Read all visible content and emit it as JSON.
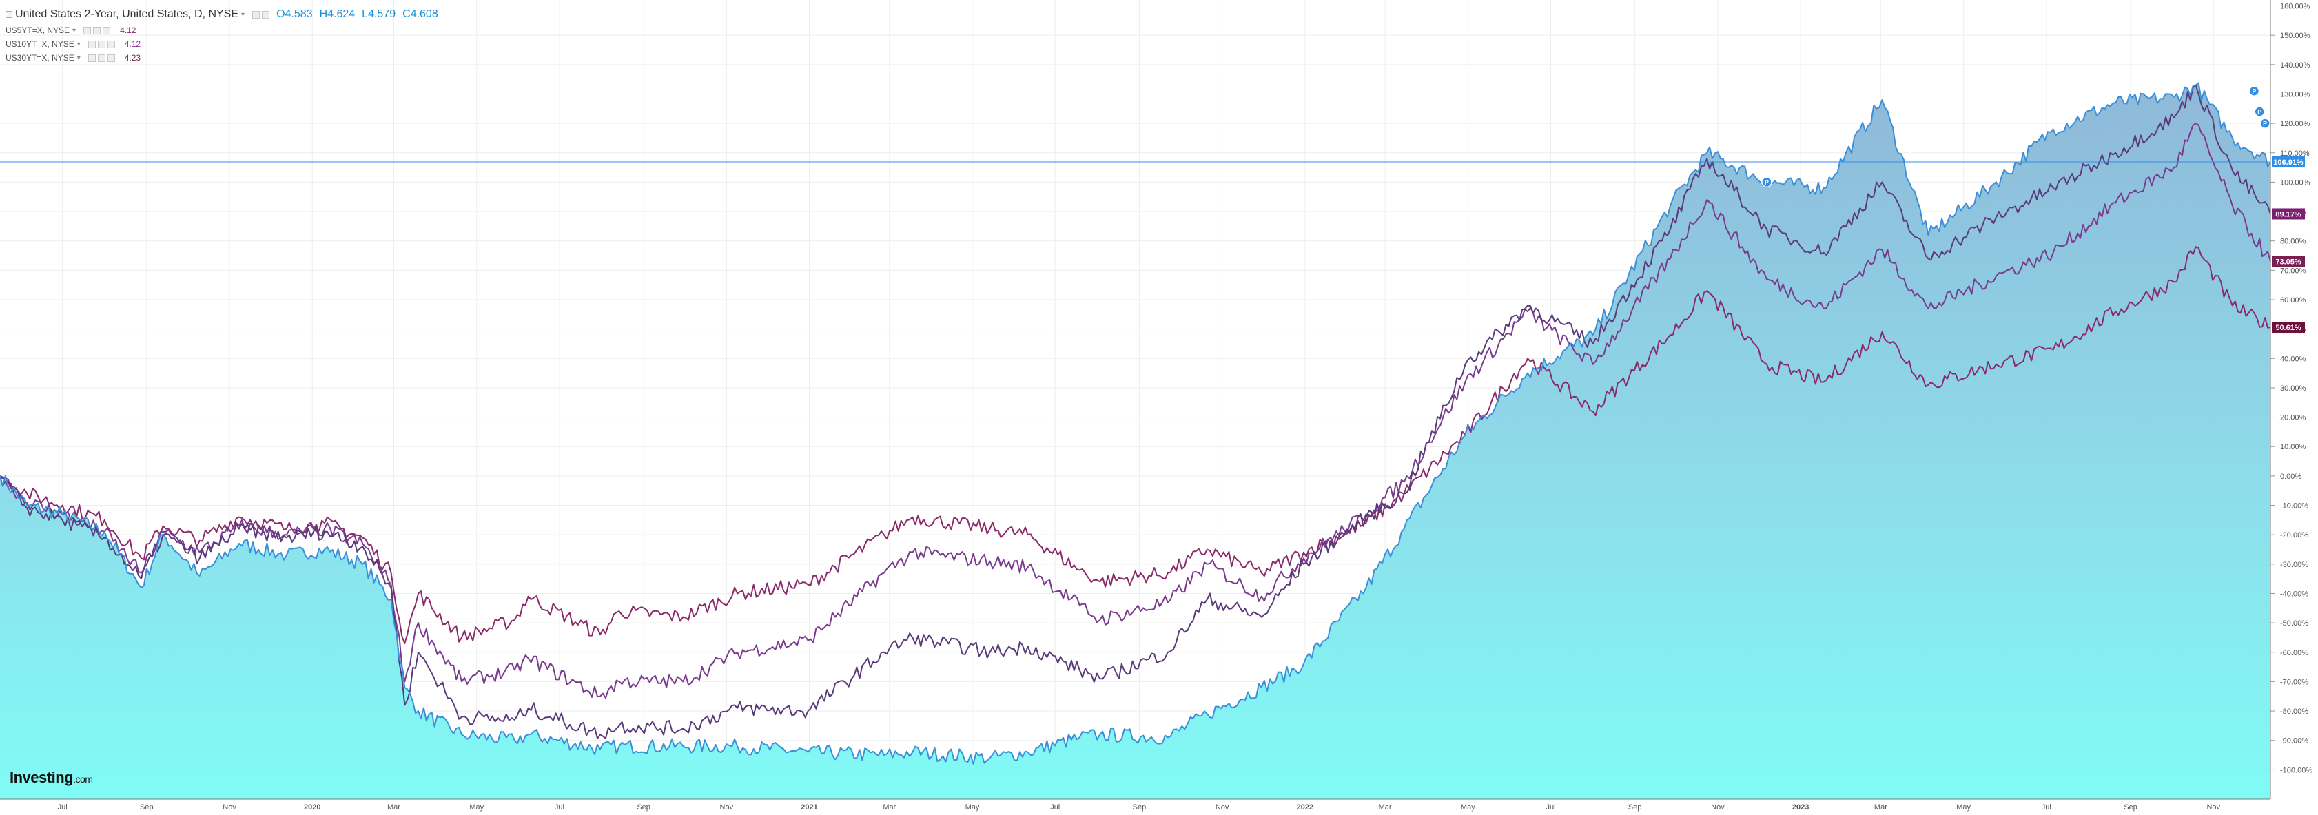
{
  "legend": {
    "main_title": "United States 2-Year, United States, D, NYSE",
    "open_key": "O",
    "open": "4.583",
    "high_key": "H",
    "high": "4.624",
    "low_key": "L",
    "low": "4.579",
    "close_key": "C",
    "close": "4.608",
    "comparisons": [
      {
        "symbol": "US5YT=X, NYSE",
        "last": "4.12"
      },
      {
        "symbol": "US10YT=X, NYSE",
        "last": "4.12"
      },
      {
        "symbol": "US30YT=X, NYSE",
        "last": "4.23"
      }
    ]
  },
  "logo": {
    "main": "Investing",
    "suffix": ".com"
  },
  "colors": {
    "us2y_line": "#3a8fd8",
    "us2y_fill_top": "#8fb8d8",
    "us2y_fill_bottom": "#80fbf5",
    "us5y": "#5a3a7a",
    "us10y": "#7a3a8e",
    "us30y": "#8b2a6b",
    "grid": "#eeeeee",
    "price_line": "#2f8fe6"
  },
  "chart_data": {
    "type": "area",
    "x_unit": "date",
    "y_unit": "percent change",
    "ylim": [
      -110,
      162
    ],
    "y_ticks": [
      "160.00%",
      "150.00%",
      "140.00%",
      "130.00%",
      "120.00%",
      "110.00%",
      "100.00%",
      "90.00%",
      "80.00%",
      "70.00%",
      "60.00%",
      "50.00%",
      "40.00%",
      "30.00%",
      "20.00%",
      "10.00%",
      "0.00%",
      "-10.00%",
      "-20.00%",
      "-30.00%",
      "-40.00%",
      "-50.00%",
      "-60.00%",
      "-70.00%",
      "-80.00%",
      "-90.00%",
      "-100.00%"
    ],
    "y_tick_values": [
      160,
      150,
      140,
      130,
      120,
      110,
      100,
      90,
      80,
      70,
      60,
      50,
      40,
      30,
      20,
      10,
      0,
      -10,
      -20,
      -30,
      -40,
      -50,
      -60,
      -70,
      -80,
      -90,
      -100
    ],
    "x_ticks": [
      {
        "label": "Jul",
        "date": "2019-07-01"
      },
      {
        "label": "Sep",
        "date": "2019-09-01"
      },
      {
        "label": "Nov",
        "date": "2019-11-01"
      },
      {
        "label": "2020",
        "date": "2020-01-01"
      },
      {
        "label": "Mar",
        "date": "2020-03-01"
      },
      {
        "label": "May",
        "date": "2020-05-01"
      },
      {
        "label": "Jul",
        "date": "2020-07-01"
      },
      {
        "label": "Sep",
        "date": "2020-09-01"
      },
      {
        "label": "Nov",
        "date": "2020-11-01"
      },
      {
        "label": "2021",
        "date": "2021-01-01"
      },
      {
        "label": "Mar",
        "date": "2021-03-01"
      },
      {
        "label": "May",
        "date": "2021-05-01"
      },
      {
        "label": "Jul",
        "date": "2021-07-01"
      },
      {
        "label": "Sep",
        "date": "2021-09-01"
      },
      {
        "label": "Nov",
        "date": "2021-11-01"
      },
      {
        "label": "2022",
        "date": "2022-01-01"
      },
      {
        "label": "Mar",
        "date": "2022-03-01"
      },
      {
        "label": "May",
        "date": "2022-05-01"
      },
      {
        "label": "Jul",
        "date": "2022-07-01"
      },
      {
        "label": "Sep",
        "date": "2022-09-01"
      },
      {
        "label": "Nov",
        "date": "2022-11-01"
      },
      {
        "label": "2023",
        "date": "2023-01-01"
      },
      {
        "label": "Mar",
        "date": "2023-03-01"
      },
      {
        "label": "May",
        "date": "2023-05-01"
      },
      {
        "label": "Jul",
        "date": "2023-07-01"
      },
      {
        "label": "Sep",
        "date": "2023-09-01"
      },
      {
        "label": "Nov",
        "date": "2023-11-01"
      }
    ],
    "x_range": [
      "2019-05-16",
      "2023-12-13"
    ],
    "current_price_level": 106.91,
    "series": [
      {
        "name": "US30YT=X, NYSE",
        "last_label": "50.61%",
        "points": [
          [
            "2019-05-16",
            0
          ],
          [
            "2019-06-05",
            -6
          ],
          [
            "2019-07-01",
            -10
          ],
          [
            "2019-08-01",
            -15
          ],
          [
            "2019-08-28",
            -28
          ],
          [
            "2019-09-13",
            -17
          ],
          [
            "2019-10-10",
            -22
          ],
          [
            "2019-11-08",
            -14
          ],
          [
            "2019-12-13",
            -18
          ],
          [
            "2020-01-10",
            -16
          ],
          [
            "2020-02-07",
            -21
          ],
          [
            "2020-02-28",
            -33
          ],
          [
            "2020-03-09",
            -57
          ],
          [
            "2020-03-19",
            -40
          ],
          [
            "2020-04-20",
            -55
          ],
          [
            "2020-05-29",
            -49
          ],
          [
            "2020-06-08",
            -41
          ],
          [
            "2020-07-31",
            -54
          ],
          [
            "2020-08-14",
            -46
          ],
          [
            "2020-09-30",
            -48
          ],
          [
            "2020-11-09",
            -40
          ],
          [
            "2020-12-31",
            -37
          ],
          [
            "2021-02-25",
            -20
          ],
          [
            "2021-03-18",
            -14
          ],
          [
            "2021-05-14",
            -18
          ],
          [
            "2021-06-11",
            -20
          ],
          [
            "2021-07-19",
            -32
          ],
          [
            "2021-08-03",
            -36
          ],
          [
            "2021-09-22",
            -33
          ],
          [
            "2021-10-21",
            -25
          ],
          [
            "2021-11-30",
            -33
          ],
          [
            "2021-12-31",
            -26
          ],
          [
            "2022-02-15",
            -16
          ],
          [
            "2022-03-15",
            -6
          ],
          [
            "2022-04-29",
            14
          ],
          [
            "2022-06-14",
            40
          ],
          [
            "2022-08-01",
            22
          ],
          [
            "2022-09-27",
            48
          ],
          [
            "2022-10-24",
            63
          ],
          [
            "2022-12-07",
            38
          ],
          [
            "2023-01-18",
            32
          ],
          [
            "2023-03-02",
            49
          ],
          [
            "2023-04-05",
            31
          ],
          [
            "2023-05-25",
            38
          ],
          [
            "2023-07-06",
            43
          ],
          [
            "2023-08-21",
            56
          ],
          [
            "2023-10-03",
            66
          ],
          [
            "2023-10-19",
            78
          ],
          [
            "2023-11-15",
            58
          ],
          [
            "2023-12-13",
            50.6
          ]
        ]
      },
      {
        "name": "US10YT=X, NYSE",
        "last_label": "73.05%",
        "points": [
          [
            "2019-05-16",
            0
          ],
          [
            "2019-06-05",
            -9
          ],
          [
            "2019-07-01",
            -13
          ],
          [
            "2019-08-01",
            -19
          ],
          [
            "2019-08-28",
            -33
          ],
          [
            "2019-09-13",
            -19
          ],
          [
            "2019-10-10",
            -26
          ],
          [
            "2019-11-08",
            -17
          ],
          [
            "2019-12-13",
            -20
          ],
          [
            "2020-01-10",
            -18
          ],
          [
            "2020-02-07",
            -23
          ],
          [
            "2020-02-28",
            -37
          ],
          [
            "2020-03-09",
            -70
          ],
          [
            "2020-03-19",
            -50
          ],
          [
            "2020-04-20",
            -70
          ],
          [
            "2020-05-29",
            -66
          ],
          [
            "2020-06-08",
            -62
          ],
          [
            "2020-07-31",
            -75
          ],
          [
            "2020-08-14",
            -70
          ],
          [
            "2020-09-30",
            -70
          ],
          [
            "2020-11-09",
            -60
          ],
          [
            "2020-12-31",
            -56
          ],
          [
            "2021-02-25",
            -33
          ],
          [
            "2021-03-18",
            -26
          ],
          [
            "2021-05-14",
            -29
          ],
          [
            "2021-06-11",
            -31
          ],
          [
            "2021-07-19",
            -44
          ],
          [
            "2021-08-03",
            -49
          ],
          [
            "2021-09-22",
            -43
          ],
          [
            "2021-10-21",
            -30
          ],
          [
            "2021-11-30",
            -41
          ],
          [
            "2021-12-31",
            -28
          ],
          [
            "2022-02-15",
            -13
          ],
          [
            "2022-03-15",
            -2
          ],
          [
            "2022-04-29",
            32
          ],
          [
            "2022-06-14",
            56
          ],
          [
            "2022-08-01",
            38
          ],
          [
            "2022-09-27",
            74
          ],
          [
            "2022-10-24",
            94
          ],
          [
            "2022-12-07",
            67
          ],
          [
            "2023-01-18",
            57
          ],
          [
            "2023-03-02",
            77
          ],
          [
            "2023-04-05",
            57
          ],
          [
            "2023-05-25",
            68
          ],
          [
            "2023-07-06",
            76
          ],
          [
            "2023-08-21",
            93
          ],
          [
            "2023-10-03",
            105
          ],
          [
            "2023-10-19",
            120
          ],
          [
            "2023-11-15",
            92
          ],
          [
            "2023-12-13",
            73
          ]
        ]
      },
      {
        "name": "US5YT=X, NYSE",
        "last_label": "89.17%",
        "points": [
          [
            "2019-05-16",
            0
          ],
          [
            "2019-06-05",
            -11
          ],
          [
            "2019-07-01",
            -15
          ],
          [
            "2019-08-01",
            -21
          ],
          [
            "2019-08-28",
            -35
          ],
          [
            "2019-09-13",
            -20
          ],
          [
            "2019-10-10",
            -28
          ],
          [
            "2019-11-08",
            -18
          ],
          [
            "2019-12-13",
            -21
          ],
          [
            "2020-01-10",
            -19
          ],
          [
            "2020-02-07",
            -24
          ],
          [
            "2020-02-28",
            -38
          ],
          [
            "2020-03-09",
            -78
          ],
          [
            "2020-03-19",
            -60
          ],
          [
            "2020-04-20",
            -82
          ],
          [
            "2020-05-29",
            -83
          ],
          [
            "2020-06-08",
            -79
          ],
          [
            "2020-07-31",
            -88
          ],
          [
            "2020-08-14",
            -85
          ],
          [
            "2020-09-30",
            -86
          ],
          [
            "2020-11-09",
            -79
          ],
          [
            "2020-12-31",
            -80
          ],
          [
            "2021-02-25",
            -60
          ],
          [
            "2021-03-18",
            -55
          ],
          [
            "2021-05-14",
            -60
          ],
          [
            "2021-06-11",
            -58
          ],
          [
            "2021-07-19",
            -66
          ],
          [
            "2021-08-03",
            -69
          ],
          [
            "2021-09-22",
            -60
          ],
          [
            "2021-10-21",
            -42
          ],
          [
            "2021-11-30",
            -48
          ],
          [
            "2021-12-31",
            -30
          ],
          [
            "2022-02-15",
            -14
          ],
          [
            "2022-03-15",
            -6
          ],
          [
            "2022-04-29",
            38
          ],
          [
            "2022-06-14",
            58
          ],
          [
            "2022-08-01",
            45
          ],
          [
            "2022-09-27",
            84
          ],
          [
            "2022-10-24",
            108
          ],
          [
            "2022-12-07",
            84
          ],
          [
            "2023-01-18",
            76
          ],
          [
            "2023-03-02",
            100
          ],
          [
            "2023-04-05",
            74
          ],
          [
            "2023-05-25",
            88
          ],
          [
            "2023-07-06",
            98
          ],
          [
            "2023-08-21",
            110
          ],
          [
            "2023-10-03",
            122
          ],
          [
            "2023-10-19",
            133
          ],
          [
            "2023-11-15",
            104
          ],
          [
            "2023-12-13",
            89.2
          ]
        ]
      },
      {
        "name": "United States 2-Year, United States, D, NYSE",
        "last_label": "106.91%",
        "area": true,
        "points": [
          [
            "2019-05-16",
            0
          ],
          [
            "2019-06-05",
            -10
          ],
          [
            "2019-07-01",
            -13
          ],
          [
            "2019-08-01",
            -19
          ],
          [
            "2019-08-28",
            -38
          ],
          [
            "2019-09-13",
            -20
          ],
          [
            "2019-10-10",
            -34
          ],
          [
            "2019-11-08",
            -23
          ],
          [
            "2019-12-13",
            -27
          ],
          [
            "2020-01-10",
            -25
          ],
          [
            "2020-02-07",
            -30
          ],
          [
            "2020-02-28",
            -42
          ],
          [
            "2020-03-09",
            -72
          ],
          [
            "2020-03-19",
            -80
          ],
          [
            "2020-04-20",
            -88
          ],
          [
            "2020-05-29",
            -90
          ],
          [
            "2020-06-08",
            -88
          ],
          [
            "2020-07-31",
            -93
          ],
          [
            "2020-08-14",
            -92
          ],
          [
            "2020-09-30",
            -92
          ],
          [
            "2020-11-09",
            -92
          ],
          [
            "2020-12-31",
            -94
          ],
          [
            "2021-02-25",
            -95
          ],
          [
            "2021-03-18",
            -94
          ],
          [
            "2021-05-14",
            -96
          ],
          [
            "2021-06-11",
            -94
          ],
          [
            "2021-07-19",
            -89
          ],
          [
            "2021-08-03",
            -88
          ],
          [
            "2021-09-22",
            -89
          ],
          [
            "2021-10-21",
            -81
          ],
          [
            "2021-11-30",
            -72
          ],
          [
            "2021-12-31",
            -64
          ],
          [
            "2022-02-15",
            -38
          ],
          [
            "2022-03-15",
            -18
          ],
          [
            "2022-04-29",
            14
          ],
          [
            "2022-06-14",
            35
          ],
          [
            "2022-08-01",
            48
          ],
          [
            "2022-09-27",
            92
          ],
          [
            "2022-10-24",
            110
          ],
          [
            "2022-12-07",
            100
          ],
          [
            "2023-01-18",
            98
          ],
          [
            "2023-03-02",
            128
          ],
          [
            "2023-04-05",
            82
          ],
          [
            "2023-05-25",
            100
          ],
          [
            "2023-07-06",
            118
          ],
          [
            "2023-08-21",
            127
          ],
          [
            "2023-10-03",
            129
          ],
          [
            "2023-10-19",
            133
          ],
          [
            "2023-11-15",
            115
          ],
          [
            "2023-12-13",
            106.9
          ]
        ]
      }
    ]
  }
}
